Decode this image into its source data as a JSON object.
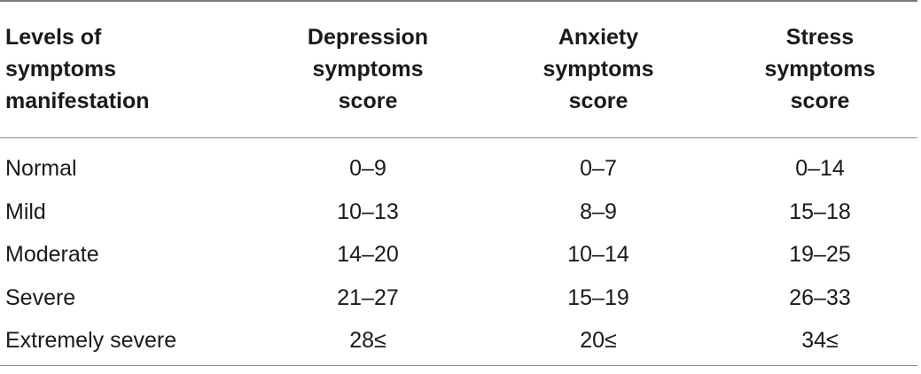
{
  "table": {
    "headers": [
      "Levels of\nsymptoms\nmanifestation",
      "Depression\nsymptoms\nscore",
      "Anxiety\nsymptoms\nscore",
      "Stress\nsymptoms\nscore"
    ],
    "rows": [
      [
        "Normal",
        "0–9",
        "0–7",
        "0–14"
      ],
      [
        "Mild",
        "10–13",
        "8–9",
        "15–18"
      ],
      [
        "Moderate",
        "14–20",
        "10–14",
        "19–25"
      ],
      [
        "Severe",
        "21–27",
        "15–19",
        "26–33"
      ],
      [
        "Extremely severe",
        "28≤",
        "20≤",
        "34≤"
      ]
    ]
  }
}
